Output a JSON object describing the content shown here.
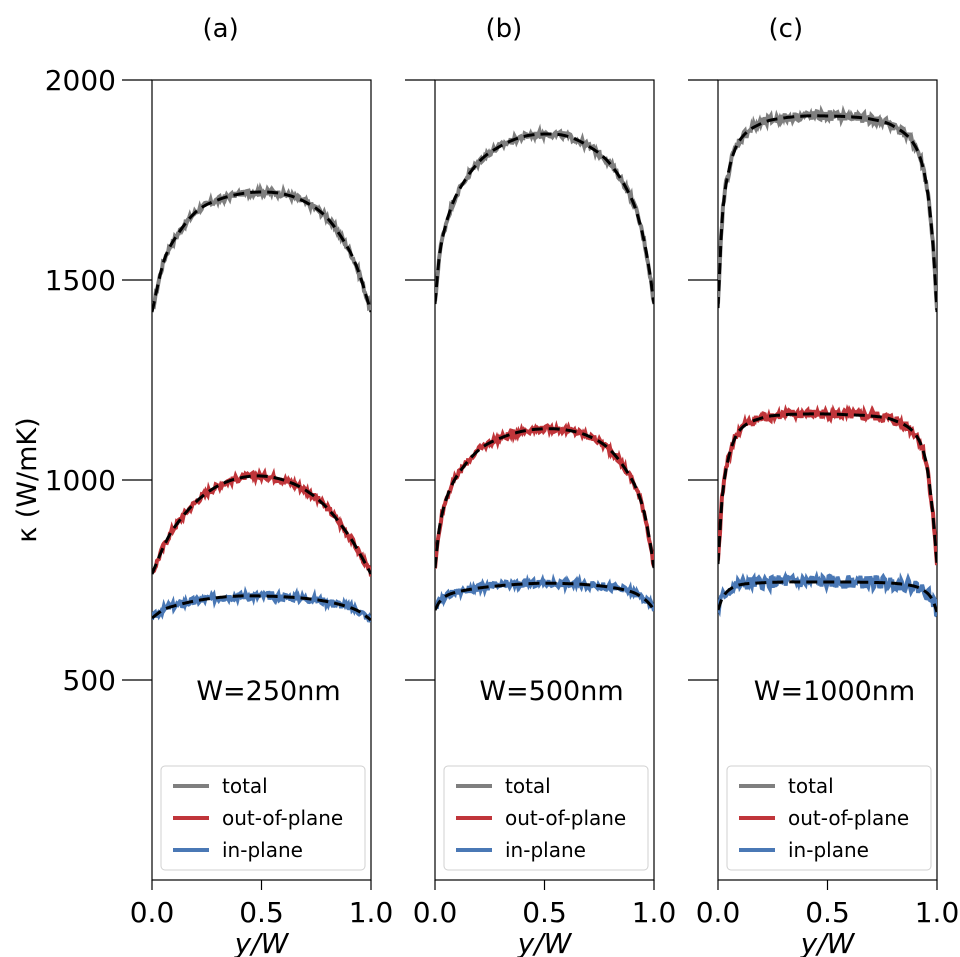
{
  "figure": {
    "y_label": "κ (W/mK)",
    "y_ticks": [
      "500",
      "1000",
      "1500",
      "2000"
    ],
    "legend_items": [
      "total",
      "out-of-plane",
      "in-plane"
    ],
    "colors": {
      "total": "#7f7f7f",
      "out-of-plane": "#c0353a",
      "in-plane": "#4a78b5",
      "fit": "#000000"
    }
  },
  "chart_data": [
    {
      "type": "line",
      "panel_label": "(a)",
      "annotation": "W=250nm",
      "xlabel": "y/W",
      "ylabel": "κ (W/mK)",
      "xlim": [
        0.0,
        1.0
      ],
      "ylim": [
        0,
        2000
      ],
      "x_ticks": [
        "0.0",
        "0.5",
        "1.0"
      ],
      "x": [
        0.0,
        0.05,
        0.1,
        0.2,
        0.3,
        0.4,
        0.5,
        0.6,
        0.7,
        0.8,
        0.9,
        0.95,
        1.0
      ],
      "series": [
        {
          "name": "total",
          "values": [
            1420,
            1540,
            1600,
            1670,
            1700,
            1715,
            1720,
            1715,
            1695,
            1655,
            1575,
            1510,
            1420
          ]
        },
        {
          "name": "out-of-plane",
          "values": [
            765,
            830,
            880,
            945,
            985,
            1005,
            1010,
            1000,
            975,
            930,
            860,
            815,
            765
          ]
        },
        {
          "name": "in-plane",
          "values": [
            655,
            675,
            685,
            698,
            706,
            710,
            710,
            708,
            704,
            696,
            682,
            670,
            650
          ]
        }
      ],
      "legend": "lower center"
    },
    {
      "type": "line",
      "panel_label": "(b)",
      "annotation": "W=500nm",
      "xlabel": "y/W",
      "ylabel": "κ (W/mK)",
      "xlim": [
        0.0,
        1.0
      ],
      "ylim": [
        0,
        2000
      ],
      "x_ticks": [
        "0.0",
        "0.5",
        "1.0"
      ],
      "x": [
        0.0,
        0.02,
        0.05,
        0.1,
        0.2,
        0.3,
        0.4,
        0.5,
        0.6,
        0.7,
        0.8,
        0.9,
        0.95,
        0.98,
        1.0
      ],
      "series": [
        {
          "name": "total",
          "values": [
            1440,
            1560,
            1640,
            1715,
            1795,
            1835,
            1858,
            1865,
            1860,
            1835,
            1790,
            1700,
            1610,
            1520,
            1440
          ]
        },
        {
          "name": "out-of-plane",
          "values": [
            780,
            880,
            950,
            1010,
            1075,
            1105,
            1122,
            1128,
            1125,
            1110,
            1075,
            1000,
            930,
            850,
            780
          ]
        },
        {
          "name": "in-plane",
          "values": [
            675,
            695,
            710,
            720,
            730,
            736,
            740,
            742,
            741,
            738,
            732,
            720,
            705,
            690,
            675
          ]
        }
      ],
      "legend": "lower center"
    },
    {
      "type": "line",
      "panel_label": "(c)",
      "annotation": "W=1000nm",
      "xlabel": "y/W",
      "ylabel": "κ (W/mK)",
      "xlim": [
        0.0,
        1.0
      ],
      "ylim": [
        0,
        2000
      ],
      "x_ticks": [
        "0.0",
        "0.5",
        "1.0"
      ],
      "x": [
        0.0,
        0.02,
        0.05,
        0.1,
        0.2,
        0.3,
        0.4,
        0.5,
        0.6,
        0.7,
        0.8,
        0.9,
        0.95,
        0.98,
        1.0
      ],
      "series": [
        {
          "name": "total",
          "values": [
            1430,
            1660,
            1775,
            1850,
            1892,
            1905,
            1910,
            1910,
            1908,
            1902,
            1885,
            1835,
            1745,
            1600,
            1420
          ]
        },
        {
          "name": "out-of-plane",
          "values": [
            790,
            960,
            1060,
            1125,
            1155,
            1163,
            1165,
            1165,
            1163,
            1160,
            1150,
            1115,
            1045,
            920,
            790
          ]
        },
        {
          "name": "in-plane",
          "values": [
            675,
            705,
            725,
            738,
            743,
            745,
            745,
            745,
            745,
            744,
            742,
            734,
            720,
            700,
            670
          ]
        }
      ],
      "legend": "lower center"
    }
  ]
}
